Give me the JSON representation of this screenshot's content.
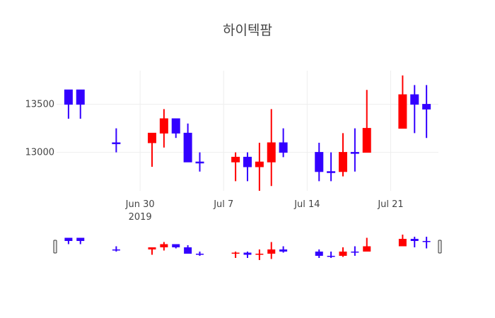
{
  "chart_data": {
    "type": "candlestick",
    "title": "하이텍팜",
    "x_ticks": [
      {
        "date": "2019-06-30",
        "label": "Jun 30",
        "sublabel": "2019"
      },
      {
        "date": "2019-07-07",
        "label": "Jul 7",
        "sublabel": ""
      },
      {
        "date": "2019-07-14",
        "label": "Jul 14",
        "sublabel": ""
      },
      {
        "date": "2019-07-21",
        "label": "Jul 21",
        "sublabel": ""
      }
    ],
    "y_ticks": [
      13000,
      13500
    ],
    "y_tick_labels": [
      "13000",
      "13500"
    ],
    "ylim": [
      12600,
      13850
    ],
    "xlim": [
      "2019-06-23",
      "2019-07-25"
    ],
    "increasing_color": "#ff0000",
    "decreasing_color": "#3300ff",
    "grid": true,
    "rangeslider": true,
    "candles": [
      {
        "date": "2019-06-24",
        "open": 13650,
        "high": 13650,
        "low": 13350,
        "close": 13500
      },
      {
        "date": "2019-06-25",
        "open": 13650,
        "high": 13650,
        "low": 13350,
        "close": 13500
      },
      {
        "date": "2019-06-28",
        "open": 13100,
        "high": 13250,
        "low": 13000,
        "close": 13100
      },
      {
        "date": "2019-07-01",
        "open": 13100,
        "high": 13200,
        "low": 12850,
        "close": 13200
      },
      {
        "date": "2019-07-02",
        "open": 13200,
        "high": 13450,
        "low": 13050,
        "close": 13350
      },
      {
        "date": "2019-07-03",
        "open": 13350,
        "high": 13350,
        "low": 13150,
        "close": 13200
      },
      {
        "date": "2019-07-04",
        "open": 13200,
        "high": 13300,
        "low": 12900,
        "close": 12900
      },
      {
        "date": "2019-07-05",
        "open": 12900,
        "high": 13000,
        "low": 12800,
        "close": 12900
      },
      {
        "date": "2019-07-08",
        "open": 12900,
        "high": 13000,
        "low": 12700,
        "close": 12950
      },
      {
        "date": "2019-07-09",
        "open": 12950,
        "high": 13000,
        "low": 12700,
        "close": 12850
      },
      {
        "date": "2019-07-10",
        "open": 12850,
        "high": 13100,
        "low": 12600,
        "close": 12900
      },
      {
        "date": "2019-07-11",
        "open": 12900,
        "high": 13450,
        "low": 12650,
        "close": 13100
      },
      {
        "date": "2019-07-12",
        "open": 13100,
        "high": 13250,
        "low": 12950,
        "close": 13000
      },
      {
        "date": "2019-07-15",
        "open": 13000,
        "high": 13100,
        "low": 12700,
        "close": 12800
      },
      {
        "date": "2019-07-16",
        "open": 12800,
        "high": 13000,
        "low": 12700,
        "close": 12800
      },
      {
        "date": "2019-07-17",
        "open": 12800,
        "high": 13200,
        "low": 12750,
        "close": 13000
      },
      {
        "date": "2019-07-18",
        "open": 13000,
        "high": 13250,
        "low": 12800,
        "close": 13000
      },
      {
        "date": "2019-07-19",
        "open": 13000,
        "high": 13650,
        "low": 13000,
        "close": 13250
      },
      {
        "date": "2019-07-22",
        "open": 13250,
        "high": 13800,
        "low": 13250,
        "close": 13600
      },
      {
        "date": "2019-07-23",
        "open": 13600,
        "high": 13700,
        "low": 13200,
        "close": 13500
      },
      {
        "date": "2019-07-24",
        "open": 13500,
        "high": 13700,
        "low": 13150,
        "close": 13450
      }
    ]
  }
}
